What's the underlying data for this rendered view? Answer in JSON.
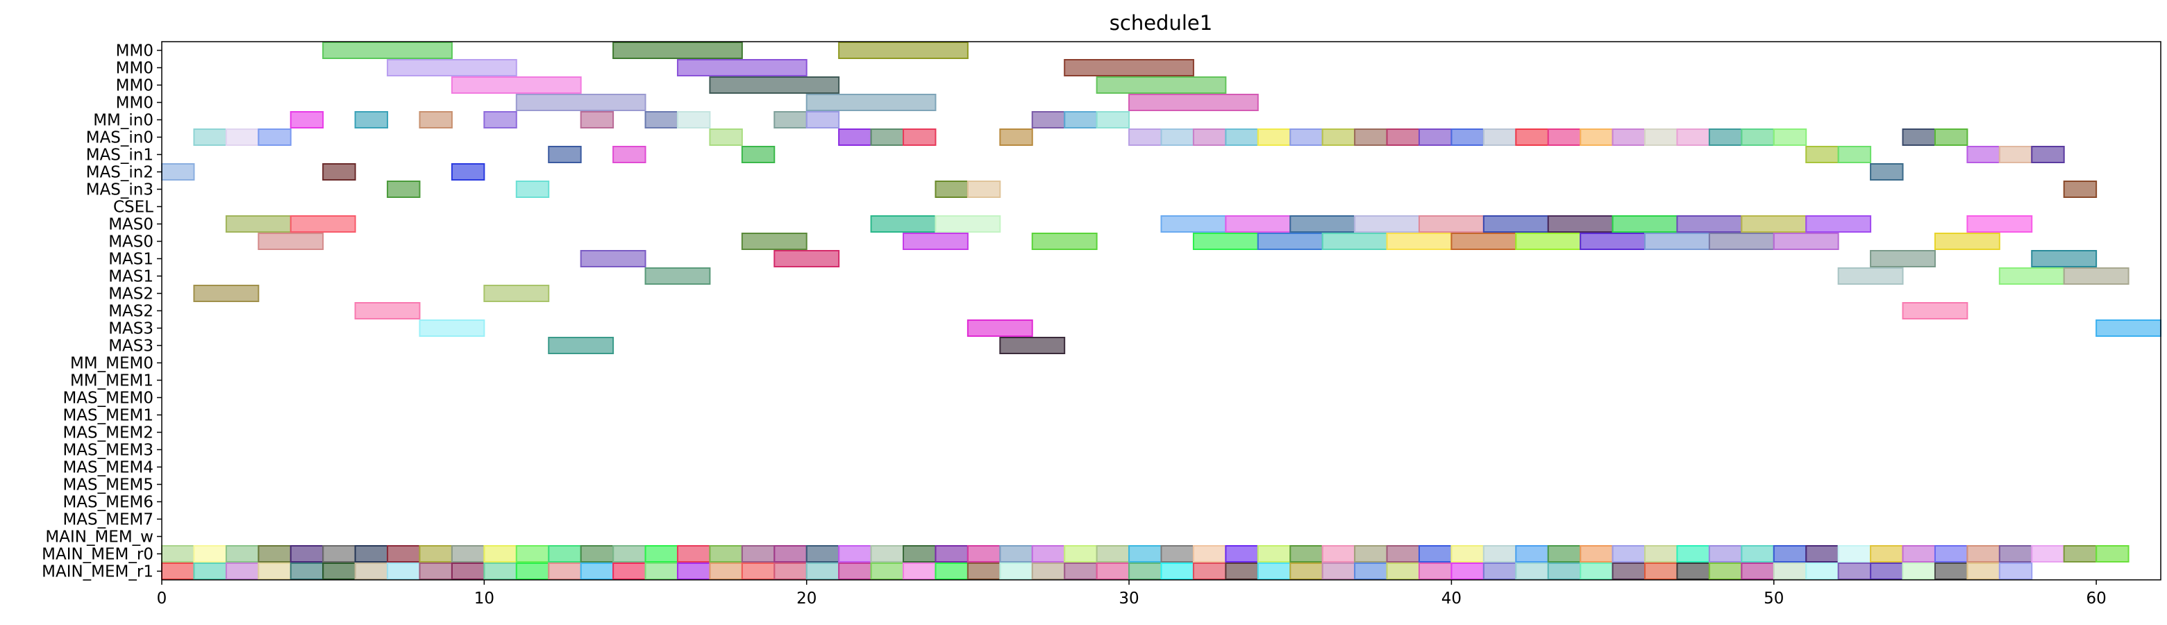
{
  "chart_data": {
    "type": "gantt",
    "title": "schedule1",
    "xlabel": "",
    "ylabel": "",
    "xlim": [
      0,
      62
    ],
    "xticks": [
      0,
      10,
      20,
      30,
      40,
      50,
      60
    ],
    "grid": false,
    "rows": [
      "MM0",
      "MM0",
      "MM0",
      "MM0",
      "MM_in0",
      "MAS_in0",
      "MAS_in1",
      "MAS_in2",
      "MAS_in3",
      "CSEL",
      "MAS0",
      "MAS0",
      "MAS1",
      "MAS1",
      "MAS2",
      "MAS2",
      "MAS3",
      "MAS3",
      "MM_MEM0",
      "MM_MEM1",
      "MAS_MEM0",
      "MAS_MEM1",
      "MAS_MEM2",
      "MAS_MEM3",
      "MAS_MEM4",
      "MAS_MEM5",
      "MAS_MEM6",
      "MAS_MEM7",
      "MAIN_MEM_w",
      "MAIN_MEM_r0",
      "MAIN_MEM_r1"
    ],
    "bars": [
      {
        "row": 0,
        "start": 5,
        "end": 9,
        "color": "#58c958"
      },
      {
        "row": 0,
        "start": 14,
        "end": 18,
        "color": "#3d7a2e"
      },
      {
        "row": 0,
        "start": 21,
        "end": 25,
        "color": "#8f9a22"
      },
      {
        "row": 1,
        "start": 7,
        "end": 11,
        "color": "#b89ef0"
      },
      {
        "row": 1,
        "start": 16,
        "end": 20,
        "color": "#8a52d8"
      },
      {
        "row": 1,
        "start": 28,
        "end": 32,
        "color": "#8b3e2e"
      },
      {
        "row": 2,
        "start": 9,
        "end": 13,
        "color": "#f27ae0"
      },
      {
        "row": 2,
        "start": 17,
        "end": 21,
        "color": "#3f5a56"
      },
      {
        "row": 2,
        "start": 29,
        "end": 33,
        "color": "#62c45a"
      },
      {
        "row": 3,
        "start": 11,
        "end": 15,
        "color": "#9a9ad0"
      },
      {
        "row": 3,
        "start": 20,
        "end": 24,
        "color": "#7ea4b8"
      },
      {
        "row": 3,
        "start": 30,
        "end": 34,
        "color": "#d45ab4"
      },
      {
        "row": 4,
        "start": 4,
        "end": 5,
        "color": "#e83ae8"
      },
      {
        "row": 4,
        "start": 6,
        "end": 7,
        "color": "#3aa2b8"
      },
      {
        "row": 4,
        "start": 8,
        "end": 9,
        "color": "#c8906e"
      },
      {
        "row": 4,
        "start": 10,
        "end": 11,
        "color": "#8e6adc"
      },
      {
        "row": 4,
        "start": 13,
        "end": 14,
        "color": "#b96a96"
      },
      {
        "row": 4,
        "start": 15,
        "end": 16,
        "color": "#6a7ab0"
      },
      {
        "row": 4,
        "start": 16,
        "end": 17,
        "color": "#c4e4e0"
      },
      {
        "row": 4,
        "start": 19,
        "end": 20,
        "color": "#7ea09a"
      },
      {
        "row": 4,
        "start": 20,
        "end": 21,
        "color": "#9a9ae4"
      },
      {
        "row": 4,
        "start": 27,
        "end": 28,
        "color": "#7a5aa8"
      },
      {
        "row": 4,
        "start": 28,
        "end": 29,
        "color": "#5aaad4"
      },
      {
        "row": 4,
        "start": 29,
        "end": 30,
        "color": "#8ee0d4"
      },
      {
        "row": 5,
        "start": 1,
        "end": 2,
        "color": "#8ed4d4"
      },
      {
        "row": 5,
        "start": 2,
        "end": 3,
        "color": "#e0d4f0"
      },
      {
        "row": 5,
        "start": 3,
        "end": 4,
        "color": "#7a9af0"
      },
      {
        "row": 5,
        "start": 17,
        "end": 18,
        "color": "#a8dc80"
      },
      {
        "row": 5,
        "start": 21,
        "end": 22,
        "color": "#8a2ae0"
      },
      {
        "row": 5,
        "start": 22,
        "end": 23,
        "color": "#5a8a6a"
      },
      {
        "row": 5,
        "start": 23,
        "end": 24,
        "color": "#e83a5a"
      },
      {
        "row": 5,
        "start": 26,
        "end": 27,
        "color": "#b88a3e"
      },
      {
        "row": 5,
        "start": 30,
        "end": 31,
        "color": "#b89ee4"
      },
      {
        "row": 5,
        "start": 31,
        "end": 32,
        "color": "#9ac4e0"
      },
      {
        "row": 5,
        "start": 32,
        "end": 33,
        "color": "#c880c8"
      },
      {
        "row": 5,
        "start": 33,
        "end": 34,
        "color": "#6abed4"
      },
      {
        "row": 5,
        "start": 34,
        "end": 35,
        "color": "#f0ea4a"
      },
      {
        "row": 5,
        "start": 35,
        "end": 36,
        "color": "#8a9ae8"
      },
      {
        "row": 5,
        "start": 36,
        "end": 37,
        "color": "#b8c44a"
      },
      {
        "row": 5,
        "start": 37,
        "end": 38,
        "color": "#9a6a5a"
      },
      {
        "row": 5,
        "start": 38,
        "end": 39,
        "color": "#b83a6a"
      },
      {
        "row": 5,
        "start": 39,
        "end": 40,
        "color": "#7a4ac8"
      },
      {
        "row": 5,
        "start": 40,
        "end": 41,
        "color": "#4a6ae0"
      },
      {
        "row": 5,
        "start": 41,
        "end": 42,
        "color": "#b8c4d4"
      },
      {
        "row": 5,
        "start": 42,
        "end": 43,
        "color": "#f03a4a"
      },
      {
        "row": 5,
        "start": 43,
        "end": 44,
        "color": "#e83a8a"
      },
      {
        "row": 5,
        "start": 44,
        "end": 45,
        "color": "#f8b45a"
      },
      {
        "row": 5,
        "start": 45,
        "end": 46,
        "color": "#c880d4"
      },
      {
        "row": 5,
        "start": 46,
        "end": 47,
        "color": "#d4d4c4"
      },
      {
        "row": 5,
        "start": 47,
        "end": 48,
        "color": "#e8a0d4"
      },
      {
        "row": 5,
        "start": 48,
        "end": 49,
        "color": "#3a9a9a"
      },
      {
        "row": 5,
        "start": 49,
        "end": 50,
        "color": "#5ad48a"
      },
      {
        "row": 5,
        "start": 50,
        "end": 51,
        "color": "#8af07a"
      },
      {
        "row": 5,
        "start": 54,
        "end": 55,
        "color": "#3a4a6a"
      },
      {
        "row": 5,
        "start": 55,
        "end": 56,
        "color": "#5ab83a"
      },
      {
        "row": 6,
        "start": 12,
        "end": 13,
        "color": "#3a5aa0"
      },
      {
        "row": 6,
        "start": 14,
        "end": 15,
        "color": "#e04ad4"
      },
      {
        "row": 6,
        "start": 18,
        "end": 19,
        "color": "#3ab84a"
      },
      {
        "row": 6,
        "start": 51,
        "end": 52,
        "color": "#a8c43a"
      },
      {
        "row": 6,
        "start": 52,
        "end": 53,
        "color": "#6ae06a"
      },
      {
        "row": 6,
        "start": 56,
        "end": 57,
        "color": "#b85ae4"
      },
      {
        "row": 6,
        "start": 57,
        "end": 58,
        "color": "#e0b8a0"
      },
      {
        "row": 6,
        "start": 58,
        "end": 59,
        "color": "#5a3aa0"
      },
      {
        "row": 7,
        "start": 0,
        "end": 1,
        "color": "#8aaee0"
      },
      {
        "row": 7,
        "start": 5,
        "end": 6,
        "color": "#6a2a2a"
      },
      {
        "row": 7,
        "start": 9,
        "end": 10,
        "color": "#2a3ae0"
      },
      {
        "row": 7,
        "start": 53,
        "end": 54,
        "color": "#3a6a8a"
      },
      {
        "row": 8,
        "start": 7,
        "end": 8,
        "color": "#4a9a3a"
      },
      {
        "row": 8,
        "start": 11,
        "end": 12,
        "color": "#6ae0d4"
      },
      {
        "row": 8,
        "start": 24,
        "end": 25,
        "color": "#6a8a2a"
      },
      {
        "row": 8,
        "start": 25,
        "end": 26,
        "color": "#e0c49a"
      },
      {
        "row": 8,
        "start": 59,
        "end": 60,
        "color": "#8a4a2a"
      },
      {
        "row": 10,
        "start": 2,
        "end": 4,
        "color": "#a0b45a"
      },
      {
        "row": 10,
        "start": 4,
        "end": 6,
        "color": "#f85a6a"
      },
      {
        "row": 10,
        "start": 22,
        "end": 24,
        "color": "#2ab88a"
      },
      {
        "row": 10,
        "start": 24,
        "end": 26,
        "color": "#c4f4c4"
      },
      {
        "row": 10,
        "start": 31,
        "end": 33,
        "color": "#6aaaf0"
      },
      {
        "row": 10,
        "start": 33,
        "end": 35,
        "color": "#e05ae8"
      },
      {
        "row": 10,
        "start": 35,
        "end": 37,
        "color": "#3a6a9a"
      },
      {
        "row": 10,
        "start": 37,
        "end": 39,
        "color": "#b8b8e0"
      },
      {
        "row": 10,
        "start": 39,
        "end": 41,
        "color": "#e08a9a"
      },
      {
        "row": 10,
        "start": 41,
        "end": 43,
        "color": "#3a4ab0"
      },
      {
        "row": 10,
        "start": 43,
        "end": 45,
        "color": "#4a2a5a"
      },
      {
        "row": 10,
        "start": 45,
        "end": 47,
        "color": "#2ad44a"
      },
      {
        "row": 10,
        "start": 47,
        "end": 49,
        "color": "#6a4ab8"
      },
      {
        "row": 10,
        "start": 49,
        "end": 51,
        "color": "#b8b84a"
      },
      {
        "row": 10,
        "start": 51,
        "end": 53,
        "color": "#a04af0"
      },
      {
        "row": 10,
        "start": 56,
        "end": 58,
        "color": "#f85ae8"
      },
      {
        "row": 11,
        "start": 3,
        "end": 5,
        "color": "#d48a8a"
      },
      {
        "row": 11,
        "start": 18,
        "end": 20,
        "color": "#5a8a3a"
      },
      {
        "row": 11,
        "start": 23,
        "end": 25,
        "color": "#c43ae8"
      },
      {
        "row": 11,
        "start": 27,
        "end": 29,
        "color": "#5ad43a"
      },
      {
        "row": 11,
        "start": 32,
        "end": 34,
        "color": "#2af04a"
      },
      {
        "row": 11,
        "start": 34,
        "end": 36,
        "color": "#3a7ad4"
      },
      {
        "row": 11,
        "start": 36,
        "end": 38,
        "color": "#5ad4b8"
      },
      {
        "row": 11,
        "start": 38,
        "end": 40,
        "color": "#f8e04a"
      },
      {
        "row": 11,
        "start": 40,
        "end": 42,
        "color": "#c4662a"
      },
      {
        "row": 11,
        "start": 42,
        "end": 44,
        "color": "#9af02a"
      },
      {
        "row": 11,
        "start": 44,
        "end": 46,
        "color": "#5a2ad4"
      },
      {
        "row": 11,
        "start": 46,
        "end": 48,
        "color": "#7a9ad4"
      },
      {
        "row": 11,
        "start": 48,
        "end": 50,
        "color": "#7a7aa8"
      },
      {
        "row": 11,
        "start": 50,
        "end": 52,
        "color": "#b86ad4"
      },
      {
        "row": 11,
        "start": 55,
        "end": 57,
        "color": "#e8d42a"
      },
      {
        "row": 12,
        "start": 13,
        "end": 15,
        "color": "#7a5ac4"
      },
      {
        "row": 12,
        "start": 19,
        "end": 21,
        "color": "#d42a6a"
      },
      {
        "row": 12,
        "start": 53,
        "end": 55,
        "color": "#7a9a8a"
      },
      {
        "row": 12,
        "start": 58,
        "end": 60,
        "color": "#2a8a9a"
      },
      {
        "row": 13,
        "start": 15,
        "end": 17,
        "color": "#5a9a7a"
      },
      {
        "row": 13,
        "start": 52,
        "end": 54,
        "color": "#a8c4c4"
      },
      {
        "row": 13,
        "start": 57,
        "end": 59,
        "color": "#8af07a"
      },
      {
        "row": 13,
        "start": 59,
        "end": 61,
        "color": "#a8a890"
      },
      {
        "row": 14,
        "start": 1,
        "end": 3,
        "color": "#a0904a"
      },
      {
        "row": 14,
        "start": 10,
        "end": 12,
        "color": "#a8c46a"
      },
      {
        "row": 15,
        "start": 6,
        "end": 8,
        "color": "#f87ab0"
      },
      {
        "row": 15,
        "start": 54,
        "end": 56,
        "color": "#f87ab0"
      },
      {
        "row": 16,
        "start": 8,
        "end": 10,
        "color": "#9af0f8"
      },
      {
        "row": 16,
        "start": 25,
        "end": 27,
        "color": "#e02ad4"
      },
      {
        "row": 16,
        "start": 60,
        "end": 62,
        "color": "#3ab0f0"
      },
      {
        "row": 17,
        "start": 12,
        "end": 14,
        "color": "#3a9a8a"
      },
      {
        "row": 17,
        "start": 26,
        "end": 28,
        "color": "#3a2a3a"
      }
    ],
    "mem_rows": [
      {
        "row": 29,
        "colors": [
          "#a8d48a",
          "#f8f89a",
          "#8ac48a",
          "#6a7a3a",
          "#4a2a7a",
          "#6a6a6a",
          "#2a3a5a",
          "#8a2a3a",
          "#a8a83a",
          "#8a9a8a",
          "#e8f05a",
          "#6af05a",
          "#3ae07a",
          "#4a8a4a",
          "#7ab88a",
          "#2af04a",
          "#e83a5a",
          "#7ab84a",
          "#9a5a8a",
          "#a03a8a",
          "#3a5a7a",
          "#c45af0",
          "#a8c4a8",
          "#3a6a3a",
          "#7a2aa8",
          "#d43aa0",
          "#7aa0c4",
          "#c46ae0",
          "#c4f07a",
          "#a8c48a",
          "#3ab8e0",
          "#7a7a7a",
          "#f0c4a0",
          "#6a2af0",
          "#c4f06a",
          "#5a9a3a",
          "#f090b8",
          "#a0a07a",
          "#a05a7a",
          "#3a5ae0",
          "#f0f07a",
          "#b8d4d4",
          "#4aa0f0",
          "#4a9a4a",
          "#f09a5a",
          "#9a9ae8",
          "#c4d490",
          "#2af0b8",
          "#9a8ae0",
          "#5ad4c4",
          "#3a5ad4",
          "#4a2a7a",
          "#c4f4f4",
          "#e0c43a",
          "#c46ad4",
          "#6a6af0",
          "#d4907a",
          "#7a5aa0",
          "#e8a0f0",
          "#7a9a3a",
          "#6ae03a"
        ]
      },
      {
        "row": 30,
        "colors": [
          "#f04a4a",
          "#5ad4b8",
          "#c480d4",
          "#e0d49a",
          "#3a7a7a",
          "#2a5a2a",
          "#c4b89a",
          "#9ae0f0",
          "#a05a7a",
          "#8a2a5a",
          "#6ad4a0",
          "#2af04a",
          "#e08a8a",
          "#3ab8f0",
          "#f02a5a",
          "#7ae07a",
          "#a82ae8",
          "#e09a6a",
          "#f05a5a",
          "#d45a7a",
          "#7ac4c4",
          "#c43a9a",
          "#7ad45a",
          "#f07ae0",
          "#2af04a",
          "#8a5a3a",
          "#b8f0e0",
          "#b8a890",
          "#a05a8a",
          "#e05a9a",
          "#5ab87a",
          "#2af0f0",
          "#e04a5a",
          "#5a3a3a",
          "#4ae0f0",
          "#b8a83a",
          "#c48ab8",
          "#5a8ae0",
          "#c4d46a",
          "#e05ab8",
          "#e03af0",
          "#7a7ad4",
          "#9ad4d4",
          "#5ab8b8",
          "#6af0b8",
          "#5a3a5a",
          "#e05a3a",
          "#3a3a3a",
          "#7ac43a",
          "#b83a9a",
          "#c4e0c4",
          "#a8f4f4",
          "#7a5ab8",
          "#5a3ab8",
          "#c4f4c4",
          "#4a4a4a",
          "#e0c48a",
          "#9aa0f0"
        ]
      }
    ]
  }
}
